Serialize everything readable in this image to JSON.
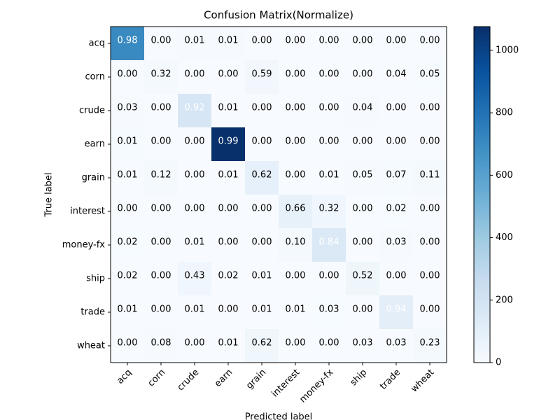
{
  "chart_data": {
    "type": "heatmap",
    "title": "Confusion Matrix(Normalize)",
    "x_label": "Predicted label",
    "y_label": "True label",
    "x_categories": [
      "acq",
      "corn",
      "crude",
      "earn",
      "grain",
      "interest",
      "money-fx",
      "ship",
      "trade",
      "wheat"
    ],
    "y_categories": [
      "acq",
      "corn",
      "crude",
      "earn",
      "grain",
      "interest",
      "money-fx",
      "ship",
      "trade",
      "wheat"
    ],
    "values": [
      [
        0.98,
        0,
        0.01,
        0.01,
        0,
        0,
        0,
        0,
        0,
        0
      ],
      [
        0,
        0.32,
        0,
        0,
        0.59,
        0,
        0,
        0,
        0.04,
        0.05
      ],
      [
        0.03,
        0,
        0.92,
        0.01,
        0,
        0,
        0,
        0.04,
        0,
        0
      ],
      [
        0.01,
        0,
        0,
        0.99,
        0,
        0,
        0,
        0,
        0,
        0
      ],
      [
        0.01,
        0.12,
        0,
        0.01,
        0.62,
        0,
        0.01,
        0.05,
        0.07,
        0.11
      ],
      [
        0,
        0,
        0,
        0,
        0,
        0.66,
        0.32,
        0,
        0.02,
        0
      ],
      [
        0.02,
        0,
        0.01,
        0,
        0,
        0.1,
        0.84,
        0,
        0.03,
        0
      ],
      [
        0.02,
        0,
        0.43,
        0.02,
        0.01,
        0,
        0,
        0.52,
        0,
        0
      ],
      [
        0.01,
        0,
        0.01,
        0,
        0.01,
        0.01,
        0.03,
        0,
        0.94,
        0
      ],
      [
        0,
        0.08,
        0,
        0.01,
        0.62,
        0,
        0,
        0.03,
        0.03,
        0.23
      ]
    ],
    "value_labels": [
      [
        "0.98",
        "0.00",
        "0.01",
        "0.01",
        "0.00",
        "0.00",
        "0.00",
        "0.00",
        "0.00",
        "0.00"
      ],
      [
        "0.00",
        "0.32",
        "0.00",
        "0.00",
        "0.59",
        "0.00",
        "0.00",
        "0.00",
        "0.04",
        "0.05"
      ],
      [
        "0.03",
        "0.00",
        "0.92",
        "0.01",
        "0.00",
        "0.00",
        "0.00",
        "0.04",
        "0.00",
        "0.00"
      ],
      [
        "0.01",
        "0.00",
        "0.00",
        "0.99",
        "0.00",
        "0.00",
        "0.00",
        "0.00",
        "0.00",
        "0.00"
      ],
      [
        "0.01",
        "0.12",
        "0.00",
        "0.01",
        "0.62",
        "0.00",
        "0.01",
        "0.05",
        "0.07",
        "0.11"
      ],
      [
        "0.00",
        "0.00",
        "0.00",
        "0.00",
        "0.00",
        "0.66",
        "0.32",
        "0.00",
        "0.02",
        "0.00"
      ],
      [
        "0.02",
        "0.00",
        "0.01",
        "0.00",
        "0.00",
        "0.10",
        "0.84",
        "0.00",
        "0.03",
        "0.00"
      ],
      [
        "0.02",
        "0.00",
        "0.43",
        "0.02",
        "0.01",
        "0.00",
        "0.00",
        "0.52",
        "0.00",
        "0.00"
      ],
      [
        "0.01",
        "0.00",
        "0.01",
        "0.00",
        "0.01",
        "0.01",
        "0.03",
        "0.00",
        "0.94",
        "0.00"
      ],
      [
        "0.00",
        "0.08",
        "0.00",
        "0.01",
        "0.62",
        "0.00",
        "0.00",
        "0.03",
        "0.03",
        "0.23"
      ]
    ],
    "counts": [
      [
        705,
        0,
        7,
        7,
        0,
        0,
        0,
        0,
        0,
        0
      ],
      [
        0,
        18,
        0,
        0,
        33,
        0,
        0,
        0,
        2,
        3
      ],
      [
        6,
        0,
        174,
        2,
        0,
        0,
        0,
        8,
        0,
        0
      ],
      [
        11,
        0,
        0,
        1076,
        0,
        0,
        0,
        0,
        0,
        0
      ],
      [
        1,
        18,
        0,
        1,
        92,
        0,
        1,
        7,
        10,
        16
      ],
      [
        0,
        0,
        0,
        0,
        0,
        86,
        42,
        0,
        3,
        0
      ],
      [
        4,
        0,
        2,
        0,
        0,
        18,
        150,
        0,
        5,
        0
      ],
      [
        2,
        0,
        38,
        2,
        1,
        0,
        0,
        46,
        0,
        0
      ],
      [
        1,
        0,
        1,
        0,
        1,
        1,
        4,
        0,
        110,
        0
      ],
      [
        0,
        6,
        0,
        1,
        44,
        0,
        0,
        2,
        2,
        16
      ]
    ],
    "colormap": "Blues",
    "clim": [
      0,
      1076
    ],
    "cticks": [
      0,
      200,
      400,
      600,
      800,
      1000
    ]
  }
}
